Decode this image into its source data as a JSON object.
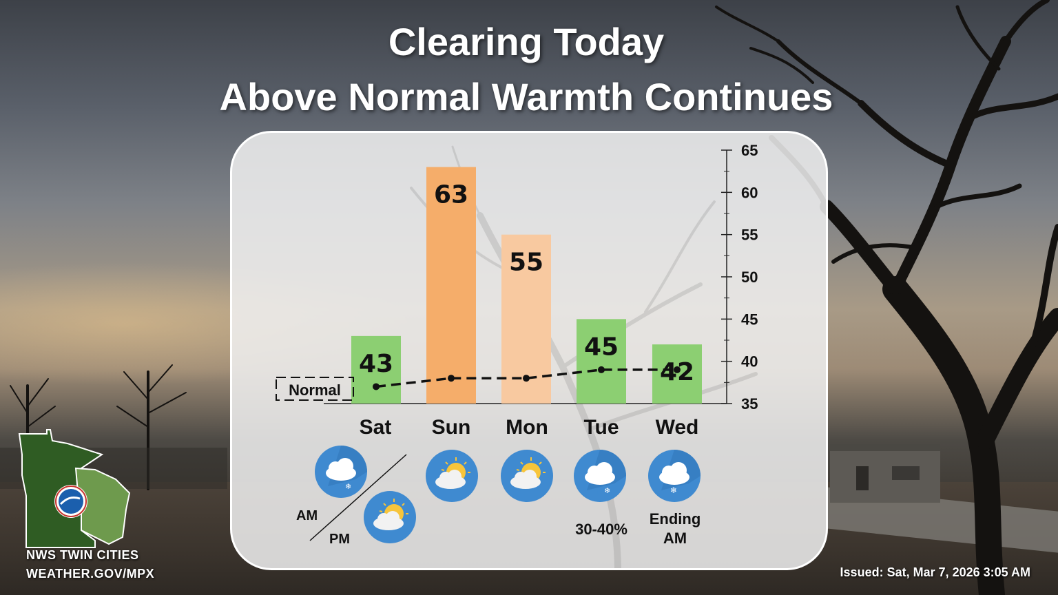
{
  "header": {
    "title_line1": "Clearing Today",
    "title_line2": "Above Normal Warmth Continues"
  },
  "chart_data": {
    "type": "bar",
    "categories": [
      "Sat",
      "Sun",
      "Mon",
      "Tue",
      "Wed"
    ],
    "values": [
      43,
      63,
      55,
      45,
      42
    ],
    "bar_labels": [
      "43",
      "63",
      "55",
      "45",
      "42"
    ],
    "bar_colors": [
      "#8ccf72",
      "#f5ad6a",
      "#f8c9a0",
      "#8ccf72",
      "#8ccf72"
    ],
    "series": [
      {
        "name": "High",
        "values": [
          43,
          63,
          55,
          45,
          42
        ]
      },
      {
        "name": "Normal",
        "values": [
          37,
          38,
          38,
          39,
          39
        ]
      }
    ],
    "normal_label": "Normal",
    "ylim": [
      35,
      65
    ],
    "yticks": [
      35,
      40,
      45,
      50,
      55,
      60,
      65
    ],
    "y_axis_side": "right",
    "grid": false
  },
  "forecast": {
    "am_label": "AM",
    "pm_label": "PM",
    "tue_note": "30-40%",
    "wed_note_line1": "Ending",
    "wed_note_line2": "AM",
    "icons": [
      "cloud-rain-snow-icon",
      "partly-sunny-icon",
      "partly-sunny-icon",
      "partly-sunny-icon",
      "cloud-rain-snow-icon",
      "cloud-snow-icon"
    ]
  },
  "footer": {
    "office": "NWS TWIN CITIES",
    "url": "WEATHER.GOV/MPX",
    "issued": "Issued: Sat, Mar 7, 2026 3:05 AM"
  }
}
